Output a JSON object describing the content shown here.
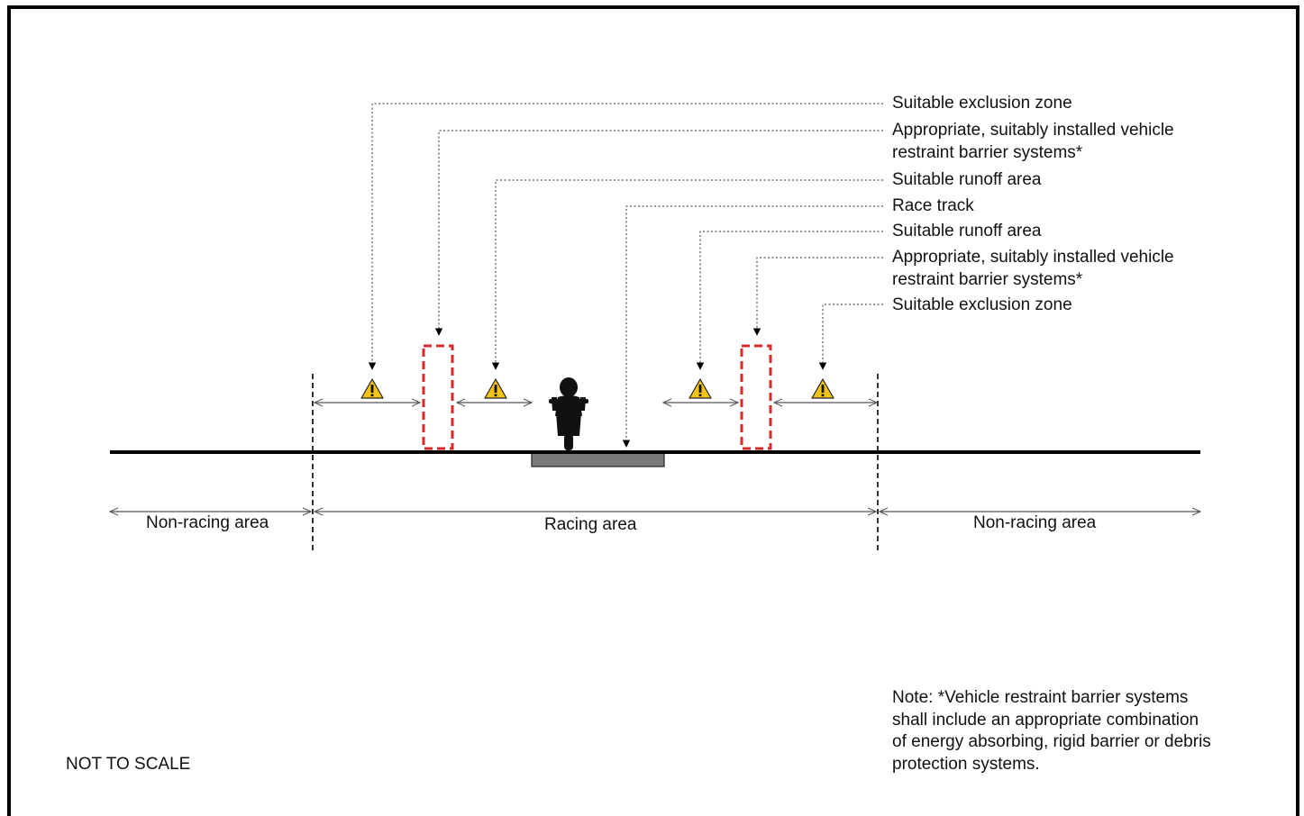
{
  "labels": [
    {
      "text": "Suitable exclusion zone"
    },
    {
      "text": "Appropriate, suitably installed vehicle",
      "text2": "restraint barrier systems*"
    },
    {
      "text": "Suitable runoff area"
    },
    {
      "text": "Race track"
    },
    {
      "text": "Suitable runoff area"
    },
    {
      "text": "Appropriate, suitably installed vehicle",
      "text2": "restraint barrier systems*"
    },
    {
      "text": "Suitable exclusion zone"
    }
  ],
  "areas": {
    "left": "Non-racing area",
    "middle": "Racing area",
    "right": "Non-racing area"
  },
  "note": {
    "line1": "Note: *Vehicle restraint barrier systems",
    "line2": "shall include an appropriate combination",
    "line3": "of energy absorbing, rigid barrier or debris",
    "line4": "protection systems."
  },
  "scale_note": "NOT TO SCALE",
  "colors": {
    "barrier": "#d42a2a",
    "warning": "#f3c317",
    "track": "#7a7a7a",
    "ground": "#000000"
  },
  "icons": {
    "warning": "warning-triangle-icon",
    "rider": "motorcycle-rider-icon"
  }
}
